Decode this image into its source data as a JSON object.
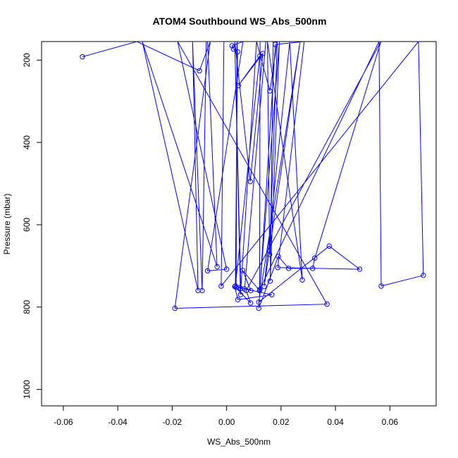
{
  "chart_data": {
    "type": "line",
    "title": "ATOM4 Southbound WS_Abs_500nm",
    "xlabel": "WS_Abs_500nm",
    "ylabel": "Pressure (mbar)",
    "xlim": [
      -0.068,
      0.077
    ],
    "ylim": [
      1040,
      155
    ],
    "y_reversed": true,
    "x_ticks": [
      -0.06,
      -0.04,
      -0.02,
      0.0,
      0.02,
      0.04,
      0.06
    ],
    "x_tick_labels": [
      "-0.06",
      "-0.04",
      "-0.02",
      "0.00",
      "0.02",
      "0.04",
      "0.06"
    ],
    "y_ticks": [
      200,
      400,
      600,
      800,
      1000
    ],
    "y_tick_labels": [
      "200",
      "400",
      "600",
      "800",
      "1000"
    ],
    "grid": false,
    "marker": "open-circle",
    "color": "#0000ff",
    "series": [
      {
        "name": "",
        "points": [
          [
            -0.053,
            192
          ],
          [
            -0.033,
            155
          ],
          [
            -0.01,
            226
          ],
          [
            -0.006,
            155
          ],
          [
            -0.019,
            803
          ],
          [
            0.0369,
            793
          ],
          [
            -0.018,
            155
          ],
          [
            0.0,
            708
          ],
          [
            -0.007,
            712
          ],
          [
            0.006,
            155
          ],
          [
            0.002,
            165
          ],
          [
            0.0025,
            173
          ],
          [
            0.004,
            180
          ],
          [
            0.0032,
            749
          ],
          [
            0.0122,
            190
          ],
          [
            0.0043,
            262
          ],
          [
            0.0133,
            184
          ],
          [
            0.0087,
            495
          ],
          [
            0.003,
            155
          ],
          [
            0.0051,
            770
          ],
          [
            0.011,
            155
          ],
          [
            0.0159,
            275
          ],
          [
            0.0186,
            155
          ],
          [
            0.0158,
            672
          ],
          [
            0.015,
            155
          ],
          [
            0.0278,
            734
          ],
          [
            0.0232,
            155
          ],
          [
            0.0138,
            750
          ],
          [
            0.027,
            155
          ],
          [
            0.0118,
            788
          ],
          [
            0.0377,
            652
          ],
          [
            0.0489,
            708
          ],
          [
            0.0188,
            704
          ],
          [
            0.0285,
            155
          ],
          [
            0.0179,
            162
          ],
          [
            0.0118,
            803
          ],
          [
            0.019,
            677
          ],
          [
            0.0228,
            706
          ],
          [
            0.0316,
            706
          ],
          [
            0.0324,
            681
          ],
          [
            0.0567,
            155
          ],
          [
            0.0072,
            760
          ],
          [
            0.0088,
            790
          ],
          [
            0.003,
            750
          ],
          [
            0.0041,
            782
          ],
          [
            0.0166,
            770
          ],
          [
            0.0046,
            753
          ],
          [
            0.0052,
            755
          ],
          [
            0.003,
            155
          ],
          [
            0.0144,
            155
          ],
          [
            0.0066,
            756
          ],
          [
            0.0089,
            760
          ],
          [
            0.0059,
            711
          ],
          [
            0.0121,
            760
          ],
          [
            0.0123,
            155
          ],
          [
            0.0095,
            155
          ],
          [
            0.0032,
            155
          ],
          [
            0.0163,
            155
          ],
          [
            0.0039,
            155
          ],
          [
            0.0035,
            752
          ],
          [
            0.0038,
            155
          ],
          [
            0.0171,
            155
          ],
          [
            0.016,
            737
          ],
          [
            0.0194,
            155
          ],
          [
            0.0122,
            757
          ],
          [
            0.056,
            155
          ],
          [
            0.0568,
            749
          ],
          [
            0.0723,
            723
          ],
          [
            0.0705,
            155
          ],
          [
            -0.002,
            749
          ],
          [
            -0.001,
            155
          ],
          [
            -0.0075,
            155
          ],
          [
            -0.009,
            760
          ],
          [
            -0.0125,
            155
          ],
          [
            -0.0105,
            760
          ],
          [
            -0.031,
            155
          ],
          [
            -0.0035,
            702
          ],
          [
            -0.007,
            155
          ],
          [
            -0.045,
            155
          ],
          [
            -0.054,
            155
          ],
          [
            -0.048,
            155
          ],
          [
            -0.046,
            155
          ]
        ]
      }
    ]
  }
}
